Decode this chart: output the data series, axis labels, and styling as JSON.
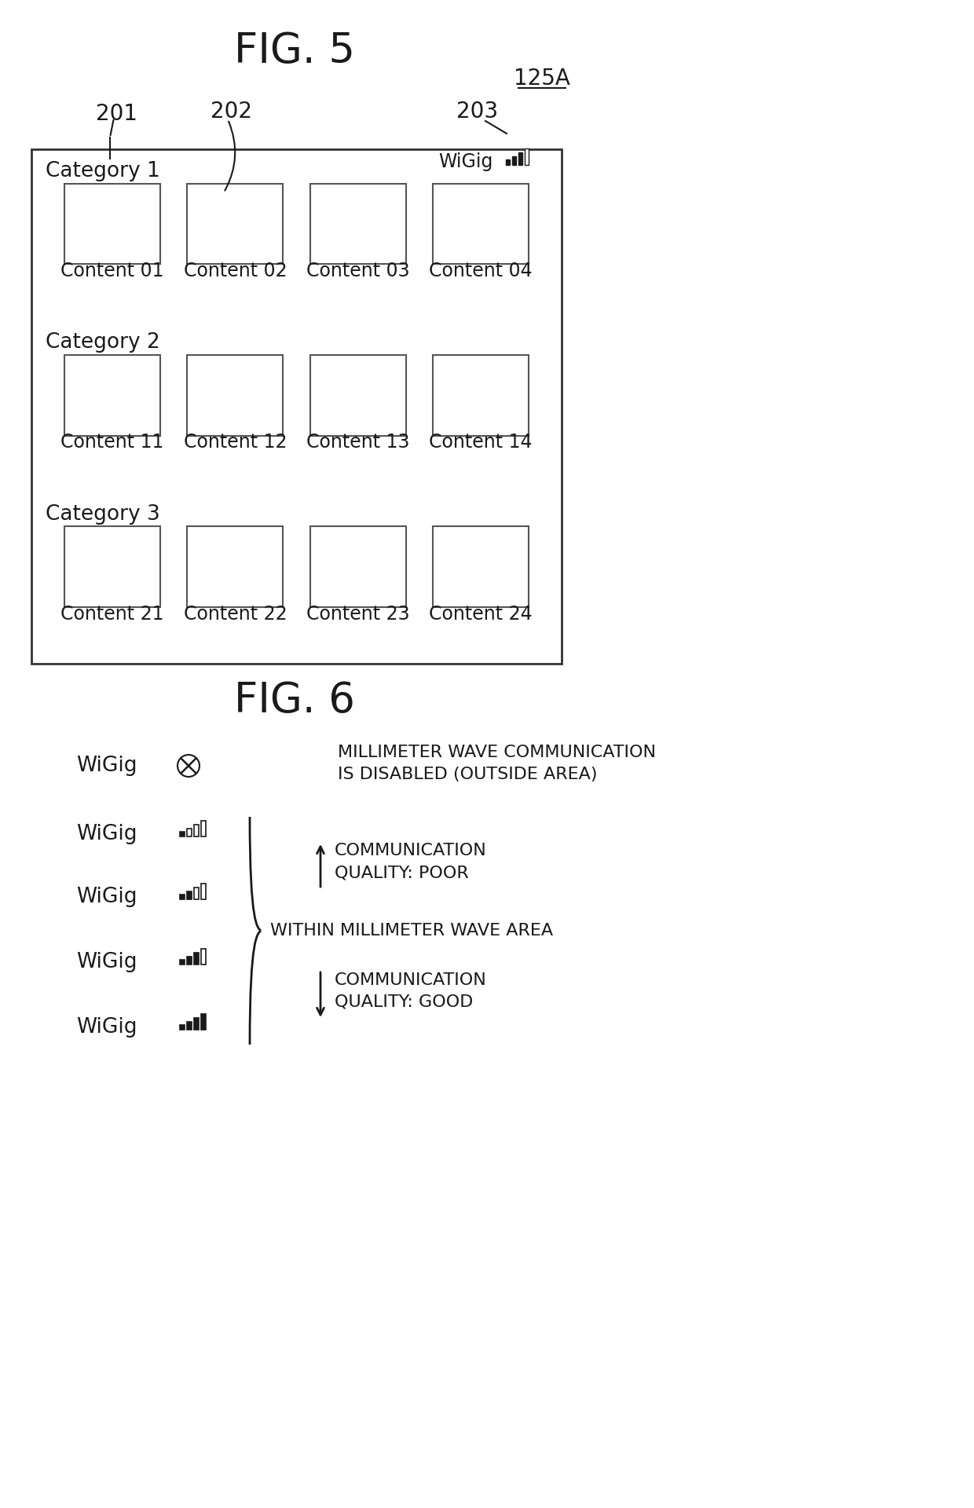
{
  "fig5_title": "FIG. 5",
  "fig6_title": "FIG. 6",
  "label_125A": "125A",
  "label_201": "201",
  "label_202": "202",
  "label_203": "203",
  "categories": [
    "Category 1",
    "Category 2",
    "Category 3"
  ],
  "content_labels": [
    [
      "Content 01",
      "Content 02",
      "Content 03",
      "Content 04"
    ],
    [
      "Content 11",
      "Content 12",
      "Content 13",
      "Content 14"
    ],
    [
      "Content 21",
      "Content 22",
      "Content 23",
      "Content 24"
    ]
  ],
  "within_area_text": "WITHIN MILLIMETER WAVE AREA",
  "comm_poor_text": "COMMUNICATION\nQUALITY: POOR",
  "comm_good_text": "COMMUNICATION\nQUALITY: GOOD",
  "disabled_text": "MILLIMETER WAVE COMMUNICATION\nIS DISABLED (OUTSIDE AREA)",
  "bg_color": "#ffffff",
  "text_color": "#1a1a1a",
  "line_color": "#1a1a1a",
  "panel_line_color": "#333333"
}
